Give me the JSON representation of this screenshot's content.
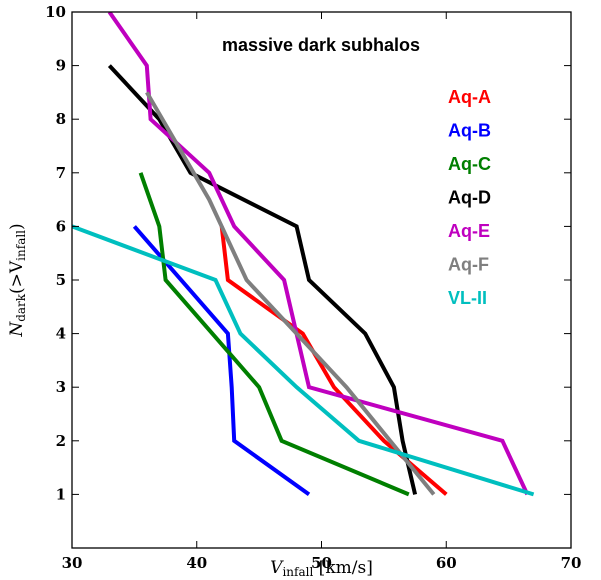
{
  "chart_data": {
    "type": "line",
    "title": "massive dark subhalos",
    "xlabel": {
      "main": "V",
      "sub": "infall",
      "rest": " [km/s]"
    },
    "ylabel": {
      "main": "N",
      "sub": "dark",
      "mid": "(>V",
      "sub2": "infall",
      "end": ")"
    },
    "xlim": [
      30,
      70
    ],
    "ylim": [
      0,
      10
    ],
    "xticks": [
      30,
      40,
      50,
      60,
      70
    ],
    "yticks": [
      1,
      2,
      3,
      4,
      5,
      6,
      7,
      8,
      9,
      10
    ],
    "grid": false,
    "legend_position": "right",
    "series": [
      {
        "name": "Aq-A",
        "color": "#ff0000",
        "points": [
          [
            42,
            6
          ],
          [
            42.5,
            5
          ],
          [
            48.5,
            4
          ],
          [
            51,
            3
          ],
          [
            55,
            2
          ],
          [
            60,
            1
          ]
        ]
      },
      {
        "name": "Aq-B",
        "color": "#0000ff",
        "points": [
          [
            35,
            6
          ],
          [
            42.5,
            4
          ],
          [
            42.8,
            3
          ],
          [
            43,
            2
          ],
          [
            49,
            1
          ]
        ]
      },
      {
        "name": "Aq-C",
        "color": "#007f00",
        "points": [
          [
            35.5,
            7
          ],
          [
            37,
            6
          ],
          [
            37.5,
            5
          ],
          [
            45,
            3
          ],
          [
            46.8,
            2
          ],
          [
            57,
            1
          ]
        ]
      },
      {
        "name": "Aq-D",
        "color": "#000000",
        "points": [
          [
            33,
            9
          ],
          [
            37,
            8
          ],
          [
            39.5,
            7
          ],
          [
            48,
            6
          ],
          [
            49,
            5
          ],
          [
            53.5,
            4
          ],
          [
            55.8,
            3
          ],
          [
            56.5,
            2
          ],
          [
            57.5,
            1
          ]
        ]
      },
      {
        "name": "Aq-E",
        "color": "#bf00bf",
        "points": [
          [
            33,
            10
          ],
          [
            36,
            9
          ],
          [
            36.3,
            8
          ],
          [
            41,
            7
          ],
          [
            43,
            6
          ],
          [
            47,
            5
          ],
          [
            49,
            3
          ],
          [
            64.5,
            2
          ],
          [
            66.5,
            1
          ]
        ]
      },
      {
        "name": "Aq-F",
        "color": "#7f7f7f",
        "points": [
          [
            36,
            8.5
          ],
          [
            41,
            6.5
          ],
          [
            44,
            5
          ],
          [
            52,
            3
          ],
          [
            59,
            1
          ]
        ]
      },
      {
        "name": "VL-II",
        "color": "#00bfbf",
        "points": [
          [
            30,
            6
          ],
          [
            41.5,
            5
          ],
          [
            43.5,
            4
          ],
          [
            48,
            3
          ],
          [
            53,
            2
          ],
          [
            67,
            1
          ]
        ]
      }
    ]
  }
}
